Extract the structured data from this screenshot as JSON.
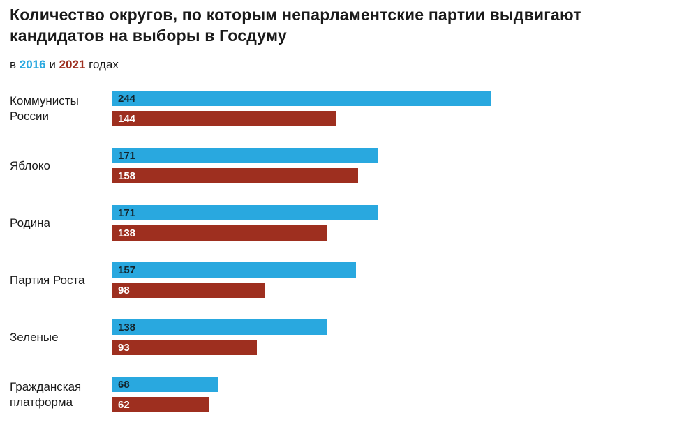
{
  "title": "Количество округов, по которым непарламентские партии выдвигают кандидатов на выборы в Госдуму",
  "subtitle": {
    "text_before": "в",
    "year_2016": "2016",
    "conjunction": "и",
    "year_2021": "2021",
    "text_after": "годах"
  },
  "colors": {
    "year_2016_bar": "#29a8df",
    "year_2021_bar": "#9e2f1f",
    "title_text": "#1a1a1a",
    "value_on_2016": "#14262e",
    "value_on_2021": "#ffffff"
  },
  "chart_data": {
    "type": "bar",
    "orientation": "horizontal",
    "title": "Количество округов, по которым непарламентские партии выдвигают кандидатов на выборы в Госдуму",
    "subtitle": "в 2016 и 2021 годах",
    "categories": [
      "Коммунисты России",
      "Яблоко",
      "Родина",
      "Партия Роста",
      "Зеленые",
      "Гражданская платформа"
    ],
    "series": [
      {
        "name": "2016",
        "color": "#29a8df",
        "values": [
          244,
          171,
          171,
          157,
          138,
          68
        ]
      },
      {
        "name": "2021",
        "color": "#9e2f1f",
        "values": [
          144,
          158,
          138,
          98,
          93,
          62
        ]
      }
    ],
    "xlim": [
      0,
      244
    ],
    "grid": false,
    "legend_position": "subtitle-inline",
    "value_labels": "inside-left"
  }
}
